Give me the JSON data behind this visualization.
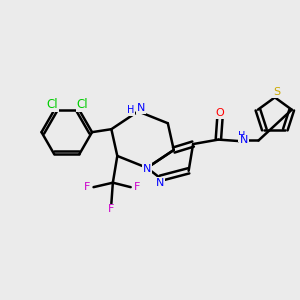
{
  "background_color": "#ebebeb",
  "bond_color": "#000000",
  "bond_width": 1.8,
  "atom_colors": {
    "N": "#0000ff",
    "O": "#ff0000",
    "Cl": "#00cc00",
    "F": "#cc00cc",
    "S": "#ccaa00",
    "C": "#000000"
  },
  "font_size": 8.0
}
